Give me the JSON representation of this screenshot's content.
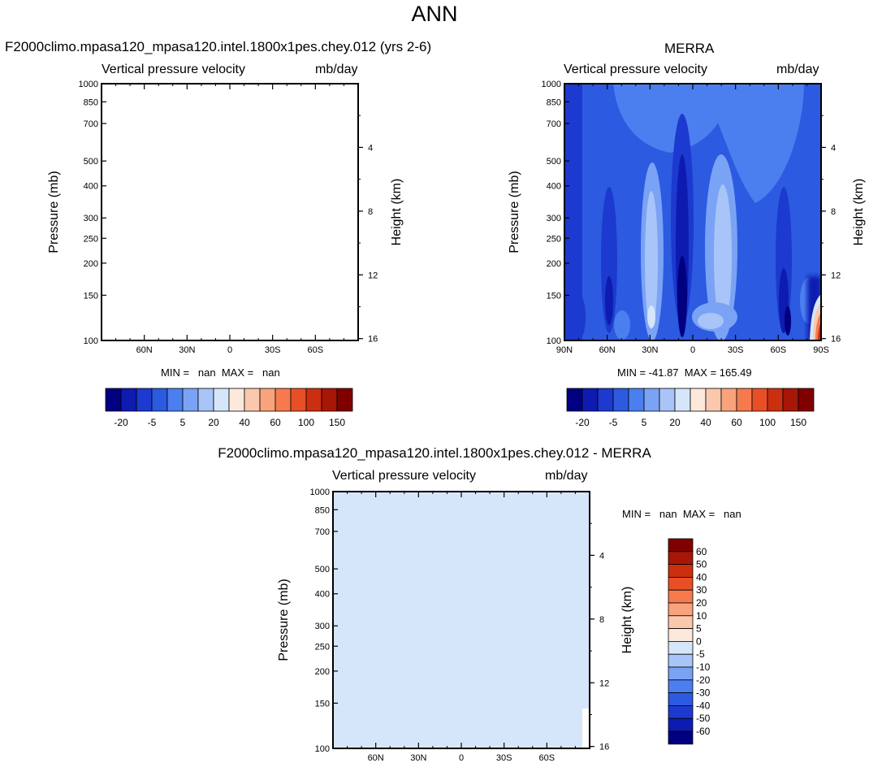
{
  "main_title": "ANN",
  "chart_data": [
    {
      "type": "heatmap",
      "title_left": "F2000climo.mpasa120_mpasa120.intel.1800x1pes.chey.012 (yrs 2-6)",
      "subtitle_left": "Vertical pressure velocity",
      "units": "mb/day",
      "ylabel": "Pressure (mb)",
      "ylabel_right": "Height (km)",
      "x_ticks": [
        "60N",
        "30N",
        "0",
        "30S",
        "60S"
      ],
      "y_ticks": [
        "100",
        "150",
        "200",
        "250",
        "300",
        "400",
        "500",
        "700",
        "850",
        "1000"
      ],
      "y2_ticks": [
        "16",
        "12",
        "8",
        "4"
      ],
      "ylim": [
        1000,
        100
      ],
      "min_label": "MIN =",
      "min_value": "nan",
      "max_label": "MAX =",
      "max_value": "nan",
      "colorbar_labels": [
        "-20",
        "-5",
        "5",
        "20",
        "40",
        "60",
        "100",
        "150"
      ],
      "fill": "none"
    },
    {
      "type": "heatmap",
      "title": "MERRA",
      "subtitle_left": "Vertical pressure velocity",
      "units": "mb/day",
      "ylabel": "Pressure (mb)",
      "ylabel_right": "Height (km)",
      "x_ticks": [
        "90N",
        "60N",
        "30N",
        "0",
        "30S",
        "60S",
        "90S"
      ],
      "y_ticks": [
        "100",
        "150",
        "200",
        "250",
        "300",
        "400",
        "500",
        "700",
        "850",
        "1000"
      ],
      "y2_ticks": [
        "16",
        "12",
        "8",
        "4"
      ],
      "ylim": [
        1000,
        100
      ],
      "xlim": [
        "90N",
        "90S"
      ],
      "min_label": "MIN =",
      "min_value": "-41.87",
      "max_label": "MAX =",
      "max_value": "165.49",
      "colorbar_labels": [
        "-20",
        "-5",
        "5",
        "20",
        "40",
        "60",
        "100",
        "150"
      ]
    },
    {
      "type": "heatmap",
      "title": "F2000climo.mpasa120_mpasa120.intel.1800x1pes.chey.012 - MERRA",
      "subtitle_left": "Vertical pressure velocity",
      "units": "mb/day",
      "ylabel": "Pressure (mb)",
      "ylabel_right": "Height (km)",
      "x_ticks": [
        "60N",
        "30N",
        "0",
        "30S",
        "60S"
      ],
      "y_ticks": [
        "100",
        "150",
        "200",
        "250",
        "300",
        "400",
        "500",
        "700",
        "850",
        "1000"
      ],
      "y2_ticks": [
        "16",
        "12",
        "8",
        "4"
      ],
      "ylim": [
        1000,
        100
      ],
      "min_label": "MIN =",
      "min_value": "nan",
      "max_label": "MAX =",
      "max_value": "nan",
      "colorbar_labels": [
        "60",
        "50",
        "40",
        "30",
        "20",
        "10",
        "5",
        "0",
        "-5",
        "-10",
        "-20",
        "-30",
        "-40",
        "-50",
        "-60"
      ],
      "fill_color": "#d6e6fa"
    }
  ],
  "colors": {
    "main_scale": [
      "#000080",
      "#0e1bb0",
      "#1c3acf",
      "#2c5ae0",
      "#4b7ff0",
      "#7aa3f5",
      "#a9c4f8",
      "#d6e6fa",
      "#fde8dc",
      "#fac8ac",
      "#f9a37c",
      "#f67a4e",
      "#e94f26",
      "#cc2f0f",
      "#a81608",
      "#800000"
    ],
    "diff_scale": [
      "#800000",
      "#a81608",
      "#cc2f0f",
      "#e94f26",
      "#f67a4e",
      "#f9a37c",
      "#fac8ac",
      "#fde8dc",
      "#d6e6fa",
      "#a9c4f8",
      "#7aa3f5",
      "#4b7ff0",
      "#2c5ae0",
      "#1c3acf",
      "#0e1bb0",
      "#000080"
    ]
  }
}
